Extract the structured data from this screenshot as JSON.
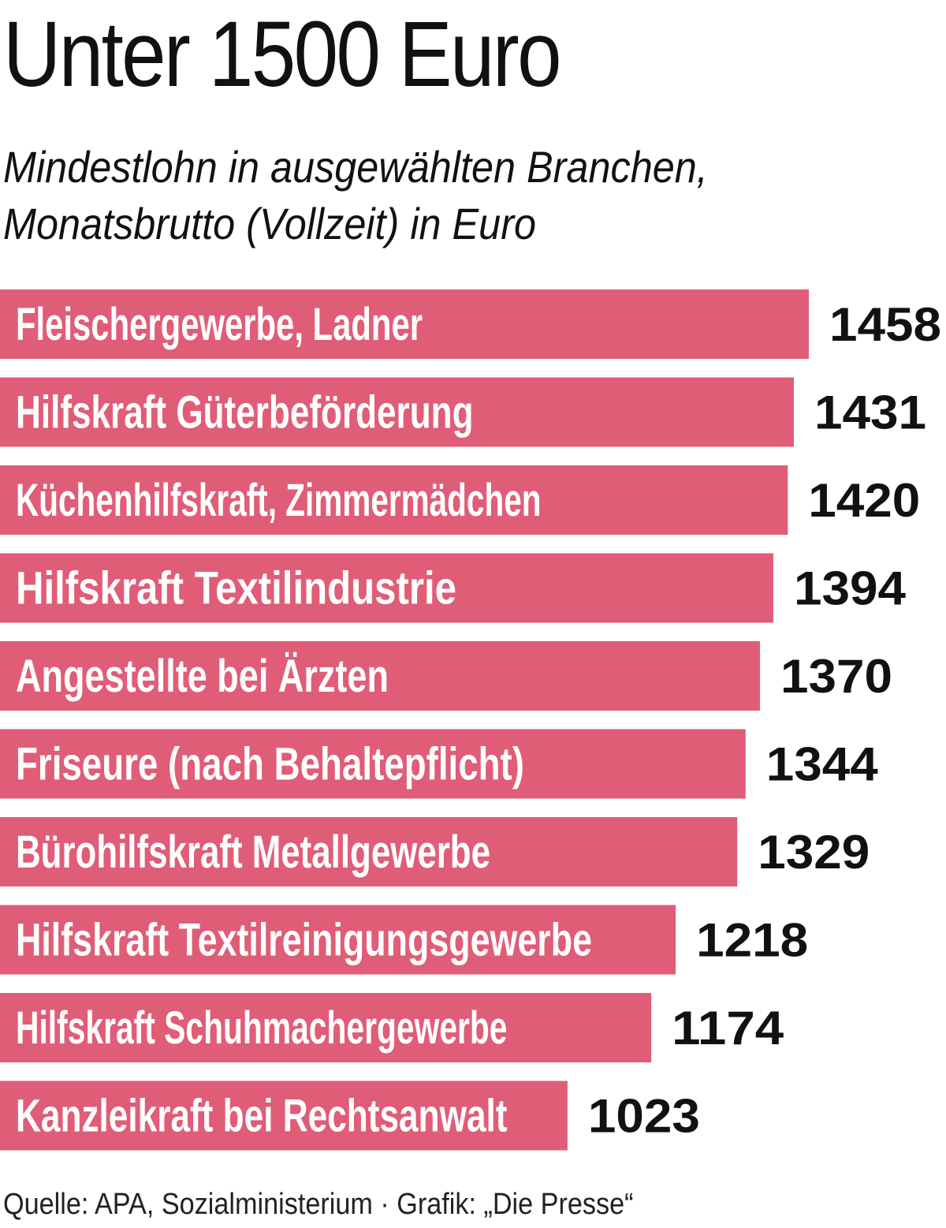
{
  "chart_data": {
    "type": "bar",
    "orientation": "horizontal",
    "title": "Unter 1500 Euro",
    "subtitle_lines": [
      "Mindestlohn in ausgewählten Branchen,",
      "Monatsbrutto (Vollzeit) in Euro"
    ],
    "categories": [
      "Fleischergewerbe, Ladner",
      "Hilfskraft Güterbeförderung",
      "Küchenhilfskraft, Zimmermädchen",
      "Hilfskraft Textilindustrie",
      "Angestellte bei Ärzten",
      "Friseure (nach Behaltepflicht)",
      "Bürohilfskraft Metallgewerbe",
      "Hilfskraft Textilreinigungsgewerbe",
      "Hilfskraft Schuhmachergewerbe",
      "Kanzleikraft bei Rechtsanwalt"
    ],
    "values": [
      1458,
      1431,
      1420,
      1394,
      1370,
      1344,
      1329,
      1218,
      1174,
      1023
    ],
    "value_labels": [
      "1458",
      "1431",
      "1420",
      "1394",
      "1370",
      "1344",
      "1329",
      "1218",
      "1174",
      "1023"
    ],
    "bar_color": "#e05d77",
    "grid": false,
    "legend": "none",
    "source": "Quelle: APA, Sozialministerium · Grafik: „Die Presse“"
  }
}
